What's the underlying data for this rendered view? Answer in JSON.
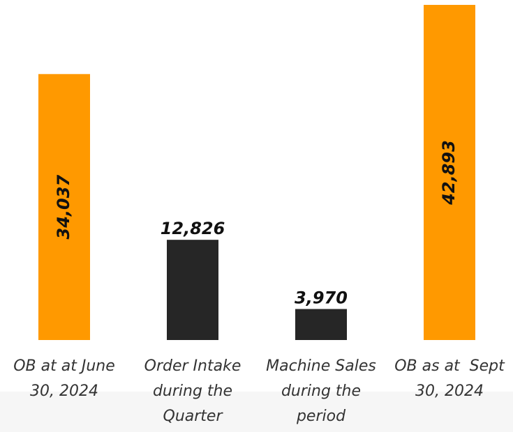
{
  "chart_data": {
    "type": "bar",
    "categories": [
      "OB at at June 30, 2024",
      "Order Intake during the Quarter",
      "Machine Sales during the period",
      "OB as at  Sept 30, 2024"
    ],
    "values": [
      34037,
      12826,
      3970,
      42893
    ],
    "value_labels": [
      "34,037",
      "12,826",
      "3,970",
      "42,893"
    ],
    "colors": [
      "#ff9900",
      "#262626",
      "#262626",
      "#ff9900"
    ]
  }
}
